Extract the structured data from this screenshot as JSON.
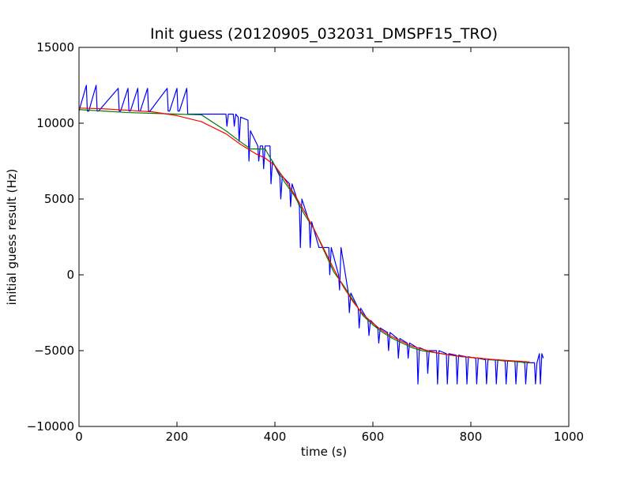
{
  "chart_data": {
    "type": "line",
    "title": "Init guess (20120905_032031_DMSPF15_TRO)",
    "xlabel": "time (s)",
    "ylabel": "initial guess result (Hz)",
    "xlim": [
      0,
      1000
    ],
    "ylim": [
      -10000,
      15000
    ],
    "x_ticks": [
      0,
      200,
      400,
      600,
      800,
      1000
    ],
    "x_tick_labels": [
      "0",
      "200",
      "400",
      "600",
      "800",
      "1000"
    ],
    "y_ticks": [
      -10000,
      -5000,
      0,
      5000,
      10000,
      15000
    ],
    "y_tick_labels": [
      "−10000",
      "−5000",
      "0",
      "5000",
      "10000",
      "15000"
    ],
    "grid": false,
    "legend": "none",
    "series": [
      {
        "color": "#0000ff",
        "x": [
          0,
          15,
          17,
          20,
          35,
          37,
          40,
          80,
          82,
          85,
          100,
          102,
          105,
          120,
          122,
          125,
          140,
          142,
          145,
          180,
          182,
          185,
          200,
          202,
          205,
          220,
          222,
          225,
          300,
          302,
          305,
          315,
          317,
          320,
          325,
          327,
          330,
          345,
          347,
          350,
          365,
          367,
          370,
          375,
          377,
          380,
          390,
          392,
          395,
          410,
          412,
          415,
          430,
          432,
          435,
          450,
          452,
          455,
          470,
          472,
          475,
          490,
          492,
          495,
          510,
          512,
          515,
          530,
          532,
          535,
          550,
          552,
          555,
          570,
          572,
          575,
          590,
          592,
          595,
          610,
          612,
          615,
          630,
          632,
          635,
          650,
          652,
          655,
          670,
          672,
          675,
          690,
          692,
          695,
          710,
          712,
          715,
          730,
          732,
          735,
          750,
          752,
          755,
          770,
          772,
          775,
          790,
          792,
          795,
          810,
          812,
          815,
          830,
          832,
          835,
          850,
          852,
          855,
          870,
          872,
          875,
          890,
          892,
          895,
          910,
          912,
          915,
          930,
          932,
          935,
          940,
          942,
          945,
          948
        ],
        "y": [
          10800,
          12500,
          10800,
          10800,
          12500,
          10800,
          10800,
          12300,
          10800,
          10800,
          12300,
          10800,
          10800,
          12300,
          10800,
          10800,
          12300,
          10800,
          10800,
          12300,
          10800,
          10800,
          12300,
          10800,
          10800,
          12300,
          10600,
          10600,
          10600,
          9800,
          10600,
          10600,
          9800,
          10600,
          10400,
          8800,
          10400,
          10200,
          7500,
          9500,
          8500,
          7500,
          8500,
          8500,
          7000,
          8500,
          8500,
          6000,
          7500,
          6500,
          5000,
          6500,
          6000,
          4500,
          6000,
          4500,
          1800,
          5000,
          3500,
          1800,
          3500,
          1800,
          1800,
          1800,
          1800,
          0,
          1800,
          0,
          -1000,
          1800,
          -1200,
          -2500,
          -1200,
          -2200,
          -3500,
          -2200,
          -3000,
          -4000,
          -3000,
          -3500,
          -4500,
          -3500,
          -3800,
          -5000,
          -3800,
          -4200,
          -5500,
          -4200,
          -4500,
          -5500,
          -4500,
          -4800,
          -7200,
          -4800,
          -5000,
          -6500,
          -5000,
          -5000,
          -7200,
          -5000,
          -5200,
          -7200,
          -5200,
          -5300,
          -7200,
          -5300,
          -5400,
          -7200,
          -5400,
          -5500,
          -7200,
          -5500,
          -5600,
          -7200,
          -5600,
          -5600,
          -7200,
          -5600,
          -5700,
          -7200,
          -5700,
          -5700,
          -7200,
          -5700,
          -5800,
          -7200,
          -5800,
          -5800,
          -7200,
          -5800,
          -5200,
          -7200,
          -5200,
          -5500
        ]
      },
      {
        "color": "#008000",
        "x": [
          0,
          50,
          100,
          150,
          200,
          250,
          300,
          320,
          350,
          380,
          400,
          420,
          440,
          460,
          480,
          500,
          520,
          540,
          560,
          580,
          600,
          620,
          640,
          660,
          680,
          700,
          720,
          740,
          760,
          780,
          800,
          820,
          840,
          860,
          880,
          900,
          920
        ],
        "y": [
          10900,
          10800,
          10700,
          10650,
          10600,
          10550,
          9500,
          9000,
          8300,
          8300,
          7200,
          6100,
          5200,
          4000,
          3000,
          1600,
          200,
          -700,
          -1700,
          -2700,
          -3300,
          -3800,
          -4200,
          -4500,
          -4800,
          -5000,
          -5100,
          -5200,
          -5300,
          -5400,
          -5450,
          -5500,
          -5600,
          -5650,
          -5700,
          -5750,
          -5800
        ]
      },
      {
        "color": "#ff0000",
        "x": [
          0,
          50,
          100,
          150,
          200,
          250,
          300,
          330,
          360,
          380,
          400,
          420,
          440,
          460,
          480,
          500,
          520,
          540,
          560,
          580,
          600,
          620,
          640,
          660,
          680,
          700,
          730,
          760,
          800,
          850,
          900,
          920
        ],
        "y": [
          11000,
          10950,
          10850,
          10750,
          10500,
          10100,
          9300,
          8600,
          8000,
          7700,
          7200,
          6300,
          5300,
          4200,
          3000,
          1700,
          400,
          -800,
          -1800,
          -2600,
          -3200,
          -3700,
          -4100,
          -4400,
          -4700,
          -4900,
          -5150,
          -5300,
          -5450,
          -5600,
          -5700,
          -5750
        ]
      }
    ]
  }
}
